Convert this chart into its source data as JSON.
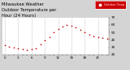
{
  "title": "Milwaukee Weather Outdoor Temperature per Hour (24 Hours)",
  "hours": [
    0,
    1,
    2,
    3,
    4,
    5,
    6,
    7,
    8,
    9,
    10,
    11,
    12,
    13,
    14,
    15,
    16,
    17,
    18,
    19,
    20,
    21,
    22,
    23
  ],
  "temps": [
    33,
    31,
    30,
    28,
    27,
    26,
    27,
    29,
    34,
    39,
    44,
    50,
    55,
    58,
    60,
    59,
    57,
    54,
    50,
    47,
    45,
    44,
    43,
    42
  ],
  "dot_color": "#cc0000",
  "bg_color": "#d4d4d4",
  "plot_bg": "#ffffff",
  "grid_color": "#888888",
  "legend_bg": "#cc0000",
  "ylim": [
    20,
    70
  ],
  "xlim": [
    -0.5,
    23.5
  ],
  "y_ticks": [
    20,
    30,
    40,
    50,
    60,
    70
  ],
  "title_fontsize": 3.8,
  "tick_fontsize": 3.0
}
